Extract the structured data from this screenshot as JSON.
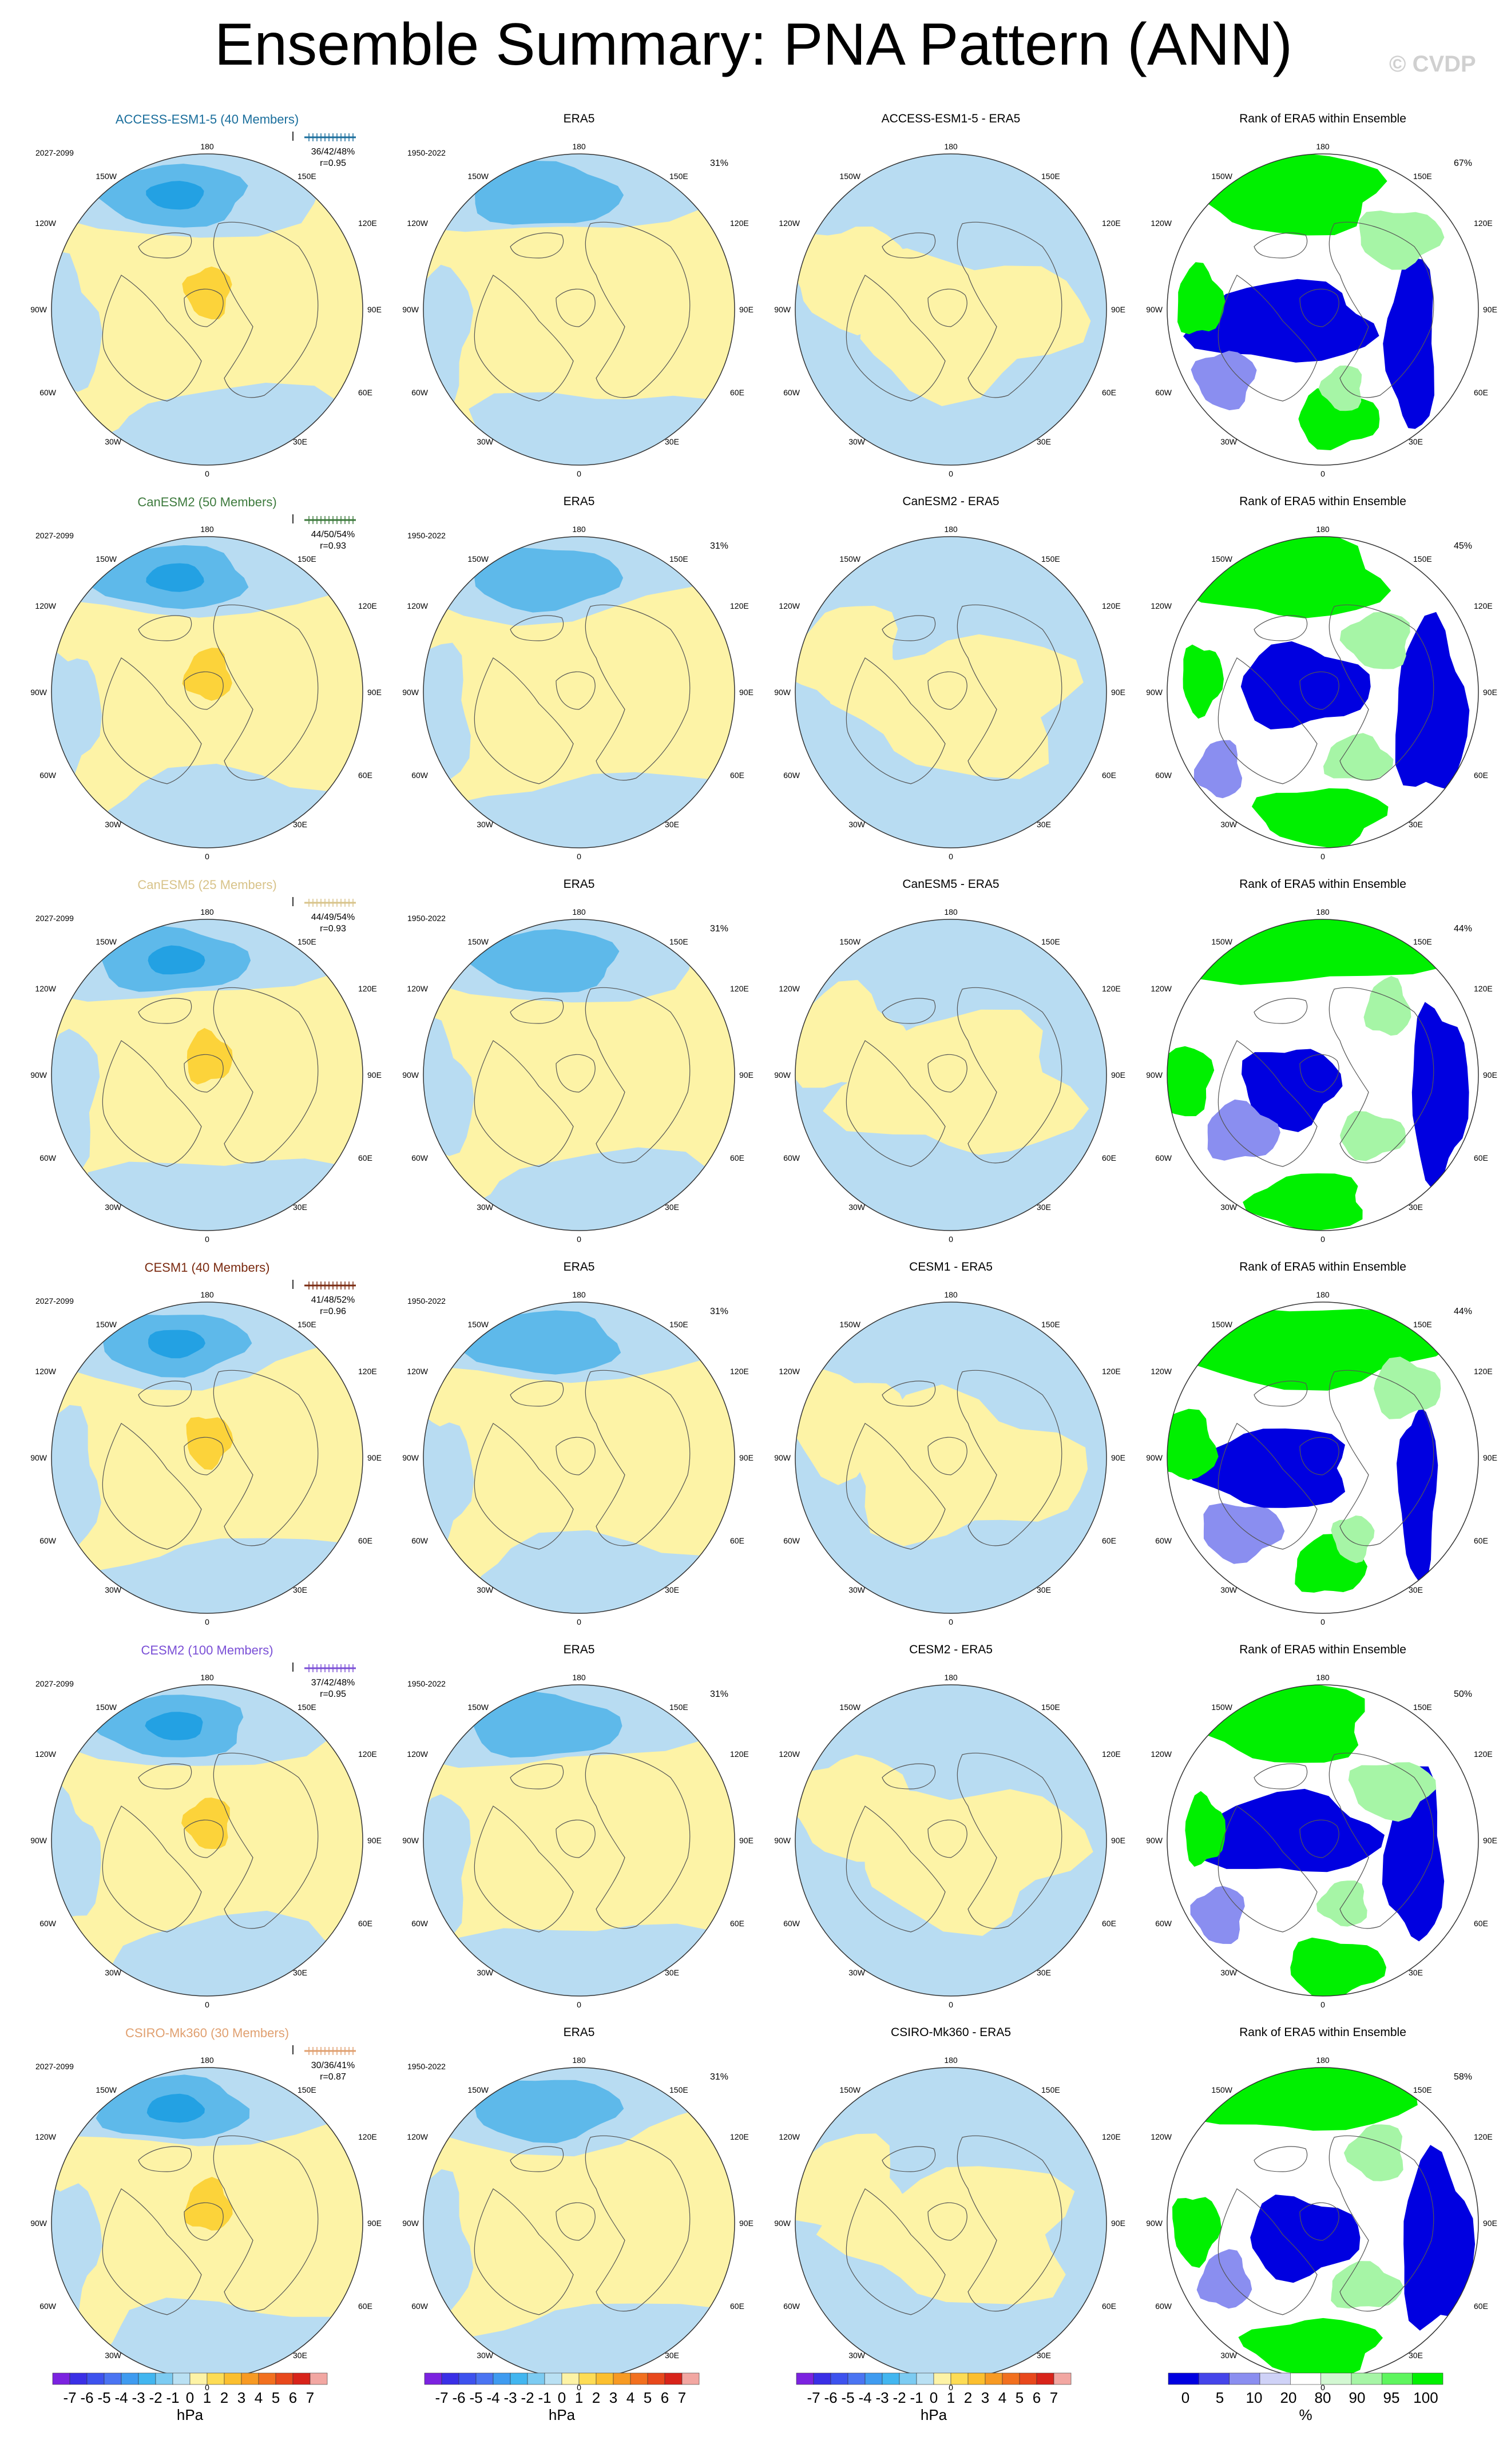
{
  "title": "Ensemble Summary: PNA Pattern (ANN)",
  "copyright": "© CVDP",
  "lon_labels": [
    "180",
    "150E",
    "120E",
    "90E",
    "60E",
    "30E",
    "0",
    "30W",
    "60W",
    "90W",
    "120W",
    "150W"
  ],
  "colors": {
    "land_line": "#555555",
    "circle": "#333333",
    "neg_light": "#b8dcf2",
    "neg_mid": "#5eb9ea",
    "neg_strong": "#23a1e3",
    "pos_light": "#fdf3a6",
    "pos_mid": "#fcd33a",
    "pos_strong": "#f7b72a",
    "rank_low": "#0000e0",
    "rank_low2": "#8a8ef0",
    "rank_mid": "#ffffff",
    "rank_high2": "#a6f5a6",
    "rank_high": "#00f000"
  },
  "rows": [
    {
      "model": "ACCESS-ESM1-5 (40 Members)",
      "model_color": "#1a6e9c",
      "period": "2027-2099",
      "stats": "36/42/48%",
      "corr": "r=0.95",
      "obs_title": "ERA5",
      "obs_period": "1950-2022",
      "obs_pct": "31%",
      "diff_title": "ACCESS-ESM1-5 - ERA5",
      "rank_title": "Rank of ERA5 within Ensemble",
      "rank_pct": "67%"
    },
    {
      "model": "CanESM2 (50 Members)",
      "model_color": "#3d7a3d",
      "period": "2027-2099",
      "stats": "44/50/54%",
      "corr": "r=0.93",
      "obs_title": "ERA5",
      "obs_period": "1950-2022",
      "obs_pct": "31%",
      "diff_title": "CanESM2 - ERA5",
      "rank_title": "Rank of ERA5 within Ensemble",
      "rank_pct": "45%"
    },
    {
      "model": "CanESM5 (25 Members)",
      "model_color": "#d8c38a",
      "period": "2027-2099",
      "stats": "44/49/54%",
      "corr": "r=0.93",
      "obs_title": "ERA5",
      "obs_period": "1950-2022",
      "obs_pct": "31%",
      "diff_title": "CanESM5 - ERA5",
      "rank_title": "Rank of ERA5 within Ensemble",
      "rank_pct": "44%"
    },
    {
      "model": "CESM1 (40 Members)",
      "model_color": "#7a2a10",
      "period": "2027-2099",
      "stats": "41/48/52%",
      "corr": "r=0.96",
      "obs_title": "ERA5",
      "obs_period": "1950-2022",
      "obs_pct": "31%",
      "diff_title": "CESM1 - ERA5",
      "rank_title": "Rank of ERA5 within Ensemble",
      "rank_pct": "44%"
    },
    {
      "model": "CESM2 (100 Members)",
      "model_color": "#7a4fd6",
      "period": "2027-2099",
      "stats": "37/42/48%",
      "corr": "r=0.95",
      "obs_title": "ERA5",
      "obs_period": "1950-2022",
      "obs_pct": "31%",
      "diff_title": "CESM2 - ERA5",
      "rank_title": "Rank of ERA5 within Ensemble",
      "rank_pct": "50%"
    },
    {
      "model": "CSIRO-Mk360 (30 Members)",
      "model_color": "#e0a070",
      "period": "2027-2099",
      "stats": "30/36/41%",
      "corr": "r=0.87",
      "obs_title": "ERA5",
      "obs_period": "1950-2022",
      "obs_pct": "31%",
      "diff_title": "CSIRO-Mk360 - ERA5",
      "rank_title": "Rank of ERA5 within Ensemble",
      "rank_pct": "58%"
    }
  ],
  "colorbar_hpa": {
    "labels": [
      "-7",
      "-6",
      "-5",
      "-4",
      "-3",
      "-2",
      "-1",
      "0",
      "1",
      "2",
      "3",
      "4",
      "5",
      "6",
      "7"
    ],
    "unit": "hPa",
    "colors": [
      "#7b22e0",
      "#3a2fe6",
      "#3d52ee",
      "#4a74f2",
      "#3f9bf0",
      "#42b6f0",
      "#7ccbf2",
      "#b9e0f3",
      "#fdf3a6",
      "#fddc55",
      "#fbbf2f",
      "#f79a23",
      "#f2701f",
      "#e8481c",
      "#d8231a",
      "#f2a7a2"
    ]
  },
  "colorbar_rank": {
    "labels": [
      "0",
      "5",
      "10",
      "20",
      "80",
      "90",
      "95",
      "100"
    ],
    "unit": "%",
    "colors": [
      "#0000e0",
      "#4545ea",
      "#8a8ef0",
      "#cfd2f7",
      "#ffffff",
      "#d2f7d2",
      "#a6f5a6",
      "#5ef55e",
      "#00f000"
    ]
  }
}
